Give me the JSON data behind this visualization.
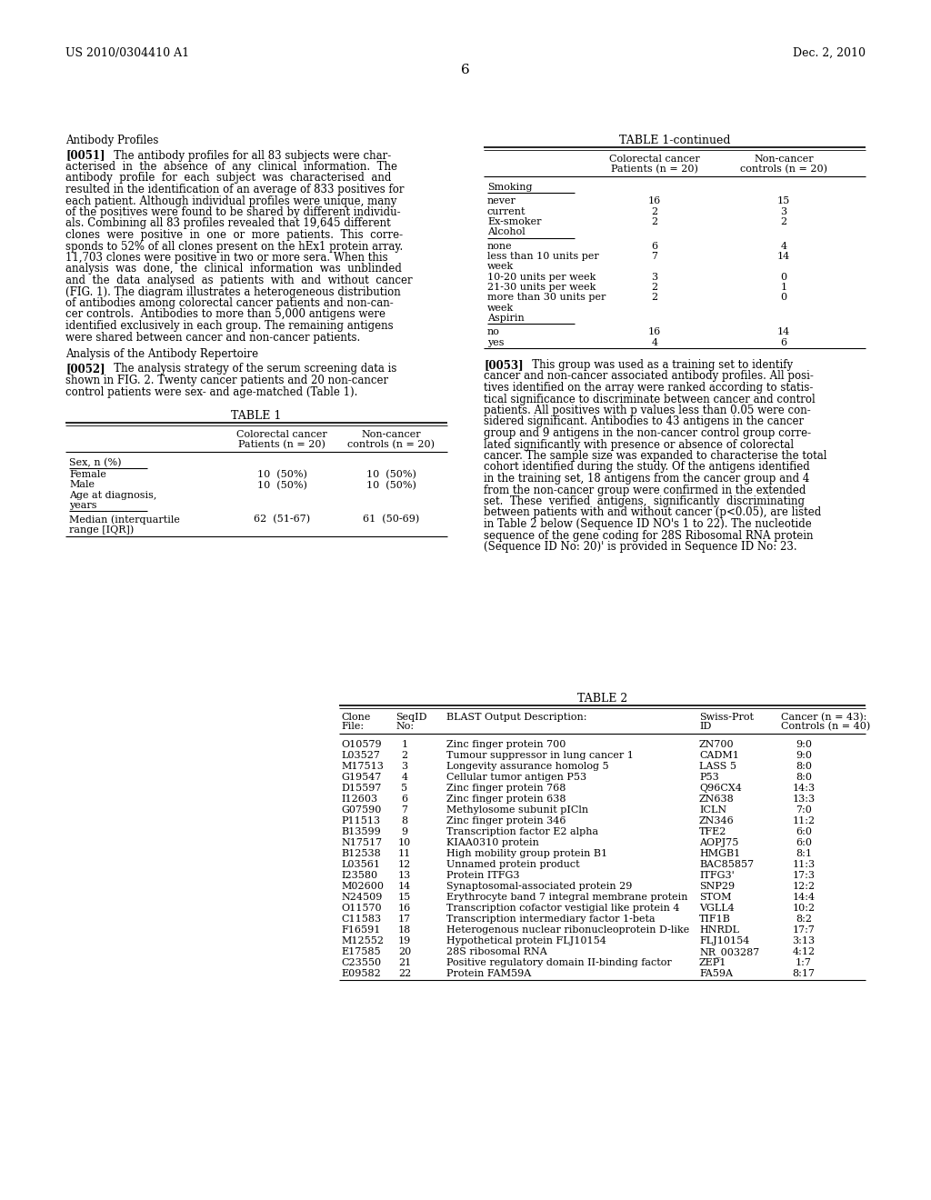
{
  "header_left": "US 2010/0304410 A1",
  "header_right": "Dec. 2, 2010",
  "page_number": "6",
  "bg_color": "#ffffff",
  "section1_title": "Antibody Profiles",
  "para0051_lines": [
    "[0051]    The antibody profiles for all 83 subjects were char-",
    "acterised  in  the  absence  of  any  clinical  information.  The",
    "antibody  profile  for  each  subject  was  characterised  and",
    "resulted in the identification of an average of 833 positives for",
    "each patient. Although individual profiles were unique, many",
    "of the positives were found to be shared by different individu-",
    "als. Combining all 83 profiles revealed that 19,645 different",
    "clones  were  positive  in  one  or  more  patients.  This  corre-",
    "sponds to 52% of all clones present on the hEx1 protein array.",
    "11,703 clones were positive in two or more sera. When this",
    "analysis  was  done,  the  clinical  information  was  unblinded",
    "and  the  data  analysed  as  patients  with  and  without  cancer",
    "(FIG. 1). The diagram illustrates a heterogeneous distribution",
    "of antibodies among colorectal cancer patients and non-can-",
    "cer controls.  Antibodies to more than 5,000 antigens were",
    "identified exclusively in each group. The remaining antigens",
    "were shared between cancer and non-cancer patients."
  ],
  "section2_title": "Analysis of the Antibody Repertoire",
  "para0052_lines": [
    "[0052]    The analysis strategy of the serum screening data is",
    "shown in FIG. 2. Twenty cancer patients and 20 non-cancer",
    "control patients were sex- and age-matched (Table 1)."
  ],
  "para0053_lines": [
    "[0053]    This group was used as a training set to identify",
    "cancer and non-cancer associated antibody profiles. All posi-",
    "tives identified on the array were ranked according to statis-",
    "tical significance to discriminate between cancer and control",
    "patients. All positives with p values less than 0.05 were con-",
    "sidered significant. Antibodies to 43 antigens in the cancer",
    "group and 9 antigens in the non-cancer control group corre-",
    "lated significantly with presence or absence of colorectal",
    "cancer. The sample size was expanded to characterise the total",
    "cohort identified during the study. Of the antigens identified",
    "in the training set, 18 antigens from the cancer group and 4",
    "from the non-cancer group were confirmed in the extended",
    "set.  These  verified  antigens,  significantly  discriminating",
    "between patients with and without cancer (p<0.05), are listed",
    "in Table 2 below (Sequence ID NO's 1 to 22). The nucleotide",
    "sequence of the gene coding for 28S Ribosomal RNA protein",
    "(Sequence ID No: 20)' is provided in Sequence ID No: 23."
  ],
  "table2_rows": [
    [
      "O10579",
      "1",
      "Zinc finger protein 700",
      "ZN700",
      "9:0"
    ],
    [
      "L03527",
      "2",
      "Tumour suppressor in lung cancer 1",
      "CADM1",
      "9:0"
    ],
    [
      "M17513",
      "3",
      "Longevity assurance homolog 5",
      "LASS 5",
      "8:0"
    ],
    [
      "G19547",
      "4",
      "Cellular tumor antigen P53",
      "P53",
      "8:0"
    ],
    [
      "D15597",
      "5",
      "Zinc finger protein 768",
      "Q96CX4",
      "14:3"
    ],
    [
      "I12603",
      "6",
      "Zinc finger protein 638",
      "ZN638",
      "13:3"
    ],
    [
      "G07590",
      "7",
      "Methylosome subunit pICln",
      "ICLN",
      "7:0"
    ],
    [
      "P11513",
      "8",
      "Zinc finger protein 346",
      "ZN346",
      "11:2"
    ],
    [
      "B13599",
      "9",
      "Transcription factor E2 alpha",
      "TFE2",
      "6:0"
    ],
    [
      "N17517",
      "10",
      "KIAA0310 protein",
      "AOPJ75",
      "6:0"
    ],
    [
      "B12538",
      "11",
      "High mobility group protein B1",
      "HMGB1",
      "8:1"
    ],
    [
      "L03561",
      "12",
      "Unnamed protein product",
      "BAC85857",
      "11:3"
    ],
    [
      "I23580",
      "13",
      "Protein ITFG3",
      "ITFG3'",
      "17:3"
    ],
    [
      "M02600",
      "14",
      "Synaptosomal-associated protein 29",
      "SNP29",
      "12:2"
    ],
    [
      "N24509",
      "15",
      "Erythrocyte band 7 integral membrane protein",
      "STOM",
      "14:4"
    ],
    [
      "O11570",
      "16",
      "Transcription cofactor vestigial like protein 4",
      "VGLL4",
      "10:2"
    ],
    [
      "C11583",
      "17",
      "Transcription intermediary factor 1-beta",
      "TIF1B",
      "8:2"
    ],
    [
      "F16591",
      "18",
      "Heterogenous nuclear ribonucleoprotein D-like",
      "HNRDL",
      "17:7"
    ],
    [
      "M12552",
      "19",
      "Hypothetical protein FLJ10154",
      "FLJ10154",
      "3:13"
    ],
    [
      "E17585",
      "20",
      "28S ribosomal RNA",
      "NR_003287",
      "4:12"
    ],
    [
      "C23550",
      "21",
      "Positive regulatory domain II-binding factor",
      "ZEP1",
      "1:7"
    ],
    [
      "E09582",
      "22",
      "Protein FAM59A",
      "FA59A",
      "8:17"
    ]
  ]
}
